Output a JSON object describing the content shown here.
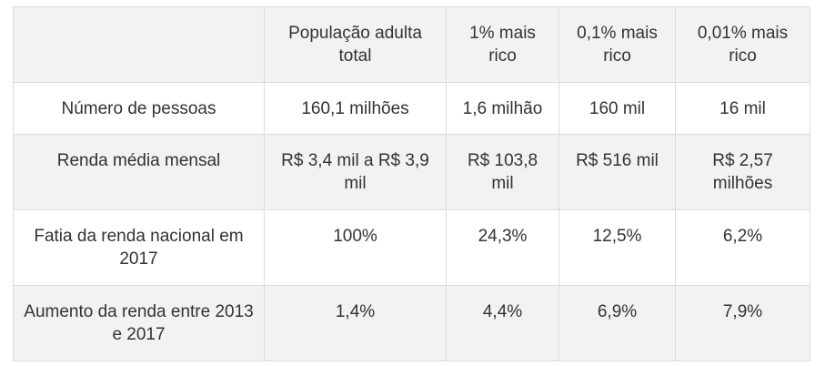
{
  "table": {
    "header": [
      "",
      "População adulta total",
      "1% mais rico",
      "0,1% mais rico",
      "0,01% mais rico"
    ],
    "rows": [
      {
        "label": "Número de pessoas",
        "cells": [
          "160,1 milhões",
          "1,6 milhão",
          "160 mil",
          "16 mil"
        ]
      },
      {
        "label": "Renda média mensal",
        "cells": [
          "R$ 3,4 mil a R$ 3,9 mil",
          "R$ 103,8 mil",
          "R$ 516 mil",
          "R$ 2,57 milhões"
        ]
      },
      {
        "label": "Fatia da renda nacional em 2017",
        "cells": [
          "100%",
          "24,3%",
          "12,5%",
          "6,2%"
        ]
      },
      {
        "label": "Aumento da renda entre 2013 e 2017",
        "cells": [
          "1,4%",
          "4,4%",
          "6,9%",
          "7,9%"
        ]
      }
    ]
  }
}
